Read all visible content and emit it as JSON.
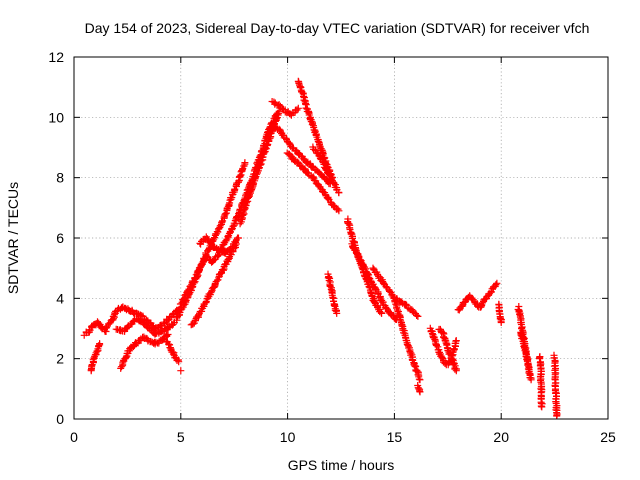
{
  "chart_data": {
    "type": "scatter",
    "title": "Day 154 of 2023, Sidereal Day-to-day VTEC variation (SDTVAR) for receiver vfch",
    "xlabel": "GPS time / hours",
    "ylabel": "SDTVAR / TECUs",
    "xlim": [
      0,
      25
    ],
    "ylim": [
      0,
      12
    ],
    "xticks": [
      0,
      5,
      10,
      15,
      20,
      25
    ],
    "yticks": [
      0,
      2,
      4,
      6,
      8,
      10,
      12
    ],
    "grid": true,
    "marker": "+",
    "color": "#ff0000",
    "segments": [
      {
        "name": "early-a",
        "x": [
          0.5,
          0.7,
          0.9,
          1.1,
          1.3,
          1.5
        ],
        "y": [
          2.8,
          2.9,
          3.1,
          3.2,
          3.0,
          2.9
        ]
      },
      {
        "name": "early-b",
        "x": [
          0.8,
          0.9,
          1.0,
          1.1,
          1.2
        ],
        "y": [
          1.6,
          1.9,
          2.1,
          2.3,
          2.5
        ]
      },
      {
        "name": "early-c",
        "x": [
          1.5,
          1.8,
          2.0,
          2.3,
          2.6,
          2.9,
          3.2,
          3.5,
          3.8,
          4.1,
          4.4,
          4.7,
          5.0
        ],
        "y": [
          3.0,
          3.3,
          3.6,
          3.7,
          3.6,
          3.5,
          3.4,
          3.2,
          3.0,
          3.1,
          3.3,
          3.5,
          3.7
        ]
      },
      {
        "name": "early-d",
        "x": [
          2.2,
          2.4,
          2.6,
          2.9,
          3.2,
          3.5,
          3.8,
          4.1,
          4.4
        ],
        "y": [
          1.7,
          2.0,
          2.3,
          2.5,
          2.7,
          2.6,
          2.5,
          2.6,
          2.8
        ]
      },
      {
        "name": "early-e",
        "x": [
          2.0,
          2.3,
          2.6,
          2.9,
          3.2,
          3.5,
          3.8,
          4.1,
          4.4,
          4.7
        ],
        "y": [
          3.0,
          2.9,
          3.1,
          3.3,
          3.2,
          3.0,
          2.8,
          2.9,
          3.0,
          3.2
        ]
      },
      {
        "name": "early-f",
        "x": [
          4.3,
          4.5,
          4.7,
          4.9
        ],
        "y": [
          2.6,
          2.4,
          2.1,
          1.9
        ]
      },
      {
        "name": "early-g",
        "x": [
          5.0
        ],
        "y": [
          1.6
        ]
      },
      {
        "name": "rise-a",
        "x": [
          4.8,
          5.0,
          5.3,
          5.6,
          5.9,
          6.2,
          6.5,
          6.8,
          7.1,
          7.4,
          7.7,
          8.0
        ],
        "y": [
          3.3,
          3.6,
          4.0,
          4.5,
          5.0,
          5.5,
          5.9,
          6.3,
          6.8,
          7.4,
          7.9,
          8.5
        ]
      },
      {
        "name": "rise-b",
        "x": [
          5.0,
          5.3,
          5.6,
          5.9,
          6.2,
          6.5,
          6.8,
          7.1,
          7.4,
          7.7,
          8.0,
          8.3,
          8.6,
          8.9,
          9.2,
          9.5
        ],
        "y": [
          3.8,
          4.2,
          4.6,
          5.0,
          5.4,
          5.2,
          5.5,
          5.9,
          6.3,
          6.8,
          7.3,
          7.9,
          8.5,
          9.1,
          9.7,
          10.1
        ]
      },
      {
        "name": "rise-c",
        "x": [
          5.5,
          5.8,
          6.1,
          6.4,
          6.7,
          7.0,
          7.3,
          7.6
        ],
        "y": [
          3.1,
          3.4,
          3.8,
          4.2,
          4.6,
          5.0,
          5.4,
          5.8
        ]
      },
      {
        "name": "rise-d",
        "x": [
          5.9,
          6.2,
          6.5,
          6.8,
          7.1,
          7.4,
          7.7
        ],
        "y": [
          5.8,
          6.0,
          5.7,
          5.6,
          5.5,
          5.7,
          6.0
        ]
      },
      {
        "name": "rise-e",
        "x": [
          7.8,
          8.1,
          8.4,
          8.7,
          9.0,
          9.3,
          9.6
        ],
        "y": [
          6.5,
          7.2,
          7.8,
          8.4,
          9.0,
          9.6,
          10.2
        ]
      },
      {
        "name": "peak-a",
        "x": [
          9.3,
          9.6,
          9.9,
          10.2,
          10.5
        ],
        "y": [
          10.5,
          10.4,
          10.2,
          10.1,
          10.3
        ]
      },
      {
        "name": "peak-b",
        "x": [
          9.0,
          9.3,
          9.6,
          9.9,
          10.2,
          10.5,
          10.8,
          11.1,
          11.4,
          11.7,
          12.0
        ],
        "y": [
          9.4,
          9.7,
          9.6,
          9.3,
          9.0,
          8.8,
          8.6,
          8.4,
          8.2,
          8.0,
          7.8
        ]
      },
      {
        "name": "peak-c",
        "x": [
          10.5,
          10.7,
          10.9,
          11.1,
          11.3,
          11.5,
          11.7,
          11.9,
          12.1
        ],
        "y": [
          11.2,
          10.8,
          10.3,
          9.9,
          9.5,
          9.1,
          8.7,
          8.3,
          8.0
        ]
      },
      {
        "name": "peak-d",
        "x": [
          10.0,
          10.3,
          10.6,
          10.9,
          11.2,
          11.5,
          11.8,
          12.1,
          12.4
        ],
        "y": [
          8.8,
          8.6,
          8.4,
          8.2,
          8.0,
          7.7,
          7.4,
          7.1,
          6.9
        ]
      },
      {
        "name": "peak-e",
        "x": [
          11.2,
          11.5,
          11.8,
          12.1,
          12.4
        ],
        "y": [
          9.0,
          8.7,
          8.3,
          7.9,
          7.5
        ]
      },
      {
        "name": "mid-a",
        "x": [
          11.9,
          12.0,
          12.1,
          12.2,
          12.3
        ],
        "y": [
          4.8,
          4.5,
          4.1,
          3.8,
          3.5
        ]
      },
      {
        "name": "fall-a",
        "x": [
          12.8,
          13.0,
          13.2,
          13.4,
          13.6,
          13.8,
          14.0,
          14.2,
          14.4
        ],
        "y": [
          6.6,
          6.1,
          5.6,
          5.2,
          4.8,
          4.4,
          4.0,
          3.7,
          3.5
        ]
      },
      {
        "name": "fall-b",
        "x": [
          13.0,
          13.3,
          13.6,
          13.9,
          14.2,
          14.5,
          14.8,
          15.1
        ],
        "y": [
          5.8,
          5.4,
          5.0,
          4.6,
          4.2,
          3.8,
          3.5,
          3.3
        ]
      },
      {
        "name": "fall-c",
        "x": [
          14.0,
          14.3,
          14.6,
          14.9,
          15.2,
          15.5,
          15.8,
          16.1
        ],
        "y": [
          5.0,
          4.7,
          4.4,
          4.1,
          3.9,
          3.8,
          3.6,
          3.4
        ]
      },
      {
        "name": "fall-d",
        "x": [
          15.0,
          15.2,
          15.4,
          15.6,
          15.8,
          16.0,
          16.2
        ],
        "y": [
          4.0,
          3.5,
          3.0,
          2.5,
          2.1,
          1.7,
          1.3
        ]
      },
      {
        "name": "fall-e",
        "x": [
          16.1,
          16.2
        ],
        "y": [
          1.1,
          0.9
        ]
      },
      {
        "name": "late-a",
        "x": [
          16.7,
          16.9,
          17.1,
          17.3,
          17.5,
          17.7,
          17.9
        ],
        "y": [
          3.0,
          2.6,
          2.2,
          1.9,
          1.8,
          2.1,
          2.6
        ]
      },
      {
        "name": "late-b",
        "x": [
          17.1,
          17.3,
          17.5,
          17.7,
          17.9
        ],
        "y": [
          3.0,
          2.8,
          2.3,
          2.0,
          1.6
        ]
      },
      {
        "name": "late-c",
        "x": [
          18.0,
          18.5,
          19.0,
          19.8
        ],
        "y": [
          3.6,
          4.1,
          3.7,
          4.5
        ]
      },
      {
        "name": "late-d",
        "x": [
          19.9,
          20.0
        ],
        "y": [
          3.8,
          3.2
        ]
      },
      {
        "name": "late-e",
        "x": [
          20.8,
          20.9,
          21.0,
          21.1,
          21.2,
          21.3
        ],
        "y": [
          3.7,
          3.3,
          2.9,
          2.5,
          2.1,
          1.7
        ]
      },
      {
        "name": "late-f",
        "x": [
          20.9,
          21.0,
          21.1,
          21.2,
          21.3,
          21.4
        ],
        "y": [
          2.9,
          2.6,
          2.4,
          2.0,
          1.6,
          1.3
        ]
      },
      {
        "name": "late-g",
        "x": [
          21.8,
          21.85,
          21.9
        ],
        "y": [
          2.1,
          1.7,
          0.4
        ]
      },
      {
        "name": "late-h",
        "x": [
          22.5,
          22.55,
          22.6
        ],
        "y": [
          2.1,
          1.0,
          0.1
        ]
      }
    ]
  }
}
